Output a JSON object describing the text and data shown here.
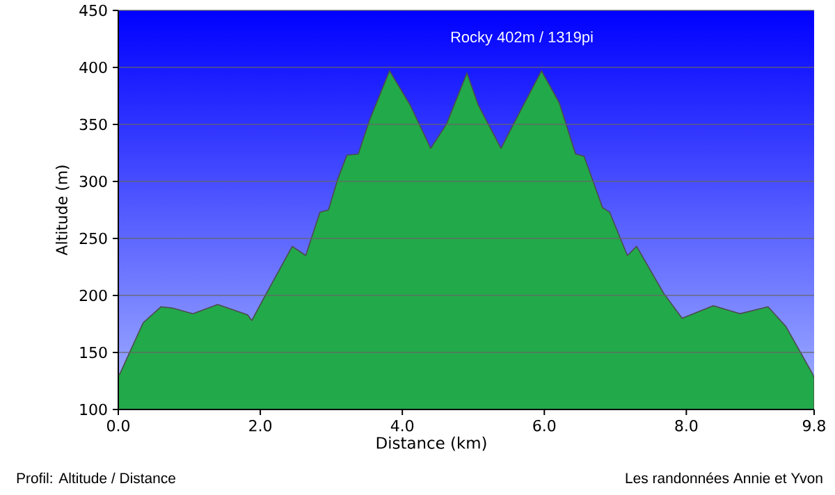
{
  "chart_data": {
    "type": "area",
    "xlabel": "Distance  (km)",
    "ylabel": "Altitude (m)",
    "x": [
      0,
      0.02,
      0.35,
      0.6,
      0.76,
      1.05,
      1.4,
      1.82,
      1.88,
      2.07,
      2.45,
      2.64,
      2.84,
      2.96,
      3.09,
      3.22,
      3.38,
      3.54,
      3.82,
      4.11,
      4.4,
      4.62,
      4.91,
      5.07,
      5.39,
      5.58,
      5.96,
      6.21,
      6.44,
      6.56,
      6.82,
      6.92,
      7.17,
      7.3,
      7.68,
      7.94,
      8.38,
      8.76,
      9.15,
      9.4,
      9.78,
      9.8
    ],
    "values": [
      130,
      131,
      176,
      190,
      189,
      184,
      192,
      183,
      178,
      200,
      243,
      235,
      273,
      275,
      302,
      323,
      324,
      354,
      397,
      367,
      329,
      350,
      395,
      367,
      329,
      352,
      397,
      369,
      324,
      322,
      277,
      273,
      235,
      243,
      202,
      180,
      191,
      184,
      190,
      173,
      131,
      128
    ],
    "color": "#22a94a",
    "xlim": [
      0,
      9.8
    ],
    "ylim": [
      100,
      450
    ],
    "xticks": [
      {
        "value": 0,
        "label": "0.0"
      },
      {
        "value": 2,
        "label": "2.0"
      },
      {
        "value": 4,
        "label": "4.0"
      },
      {
        "value": 6,
        "label": "6.0"
      },
      {
        "value": 8,
        "label": "8.0"
      },
      {
        "value": 9.8,
        "label": "9.8"
      }
    ],
    "yticks": [
      100,
      150,
      200,
      250,
      300,
      350,
      400,
      450
    ],
    "grid": "y",
    "annotations": [
      "Rocky 402m / 1319pi",
      "Profil: Altitude / Distance",
      "Les randonnées Annie et Yvon"
    ]
  }
}
